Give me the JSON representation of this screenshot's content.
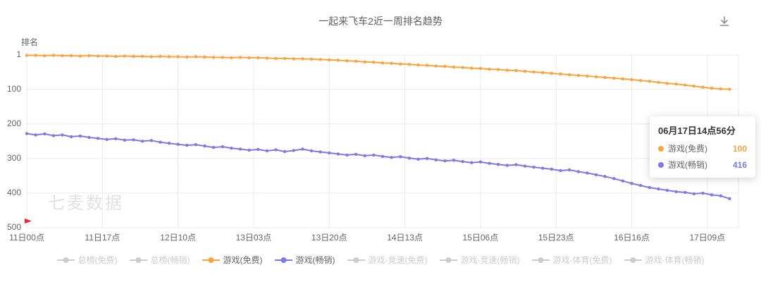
{
  "header": {
    "title": "一起来飞车2近一周排名趋势",
    "download_icon": "download-icon"
  },
  "chart_data": {
    "type": "line",
    "title": "一起来飞车2近一周排名趋势",
    "watermark": "七麦数据",
    "grid_color": "#ebebeb",
    "y_axis": {
      "name": "排名",
      "inverted": true,
      "min": 1,
      "max": 500,
      "ticks": [
        1,
        100,
        200,
        300,
        400,
        500
      ]
    },
    "x_axis": {
      "max_hour": 160,
      "tick_hours": [
        0,
        17,
        34,
        51,
        68,
        85,
        102,
        119,
        136,
        153
      ],
      "tick_labels": [
        "11日00点",
        "11日17点",
        "12日10点",
        "13日03点",
        "13日20点",
        "14日13点",
        "15日06点",
        "15日23点",
        "16日16点",
        "17日09点"
      ]
    },
    "marker": {
      "type": "flag",
      "color": "#f5222d",
      "x_hour": 0,
      "rank": 500
    },
    "series": [
      {
        "name": "游戏(免费)",
        "color": "#F9A43F",
        "x_start": 0,
        "x_step": 2,
        "values": [
          2,
          2,
          3,
          2,
          3,
          3,
          4,
          3,
          4,
          4,
          5,
          4,
          5,
          5,
          6,
          5,
          6,
          6,
          7,
          6,
          7,
          8,
          8,
          9,
          8,
          9,
          9,
          10,
          11,
          11,
          12,
          12,
          13,
          14,
          15,
          16,
          18,
          19,
          21,
          22,
          24,
          25,
          27,
          28,
          30,
          31,
          33,
          34,
          36,
          37,
          39,
          40,
          42,
          43,
          45,
          46,
          48,
          50,
          52,
          54,
          56,
          58,
          60,
          62,
          64,
          66,
          68,
          70,
          72,
          75,
          77,
          80,
          83,
          85,
          88,
          91,
          94,
          97,
          99,
          100
        ]
      },
      {
        "name": "游戏(畅销)",
        "color": "#7D7BDF",
        "x_start": 0,
        "x_step": 2,
        "values": [
          228,
          232,
          229,
          234,
          232,
          237,
          235,
          239,
          242,
          245,
          243,
          247,
          246,
          250,
          248,
          253,
          256,
          259,
          262,
          260,
          264,
          268,
          266,
          270,
          273,
          276,
          274,
          278,
          275,
          280,
          277,
          273,
          278,
          281,
          284,
          287,
          290,
          288,
          292,
          290,
          294,
          297,
          295,
          299,
          302,
          300,
          304,
          307,
          305,
          309,
          312,
          310,
          314,
          317,
          320,
          318,
          322,
          325,
          328,
          331,
          335,
          333,
          338,
          342,
          347,
          352,
          358,
          365,
          372,
          378,
          384,
          388,
          392,
          396,
          398,
          402,
          400,
          405,
          408,
          416
        ]
      }
    ]
  },
  "tooltip": {
    "time": "06月17日14点56分",
    "rows": [
      {
        "label": "游戏(免费)",
        "value": "100",
        "color": "#F9A43F"
      },
      {
        "label": "游戏(畅销)",
        "value": "416",
        "color": "#7D7BDF"
      }
    ]
  },
  "legend": {
    "inactive_color": "#cccccc",
    "items": [
      {
        "label": "总榜(免费)",
        "active": false
      },
      {
        "label": "总榜(畅销)",
        "active": false
      },
      {
        "label": "游戏(免费)",
        "active": true,
        "color": "#F9A43F"
      },
      {
        "label": "游戏(畅销)",
        "active": true,
        "color": "#7D7BDF"
      },
      {
        "label": "游戏-竞速(免费)",
        "active": false
      },
      {
        "label": "游戏-竞速(畅销)",
        "active": false
      },
      {
        "label": "游戏-体育(免费)",
        "active": false
      },
      {
        "label": "游戏-体育(畅销)",
        "active": false
      }
    ]
  }
}
